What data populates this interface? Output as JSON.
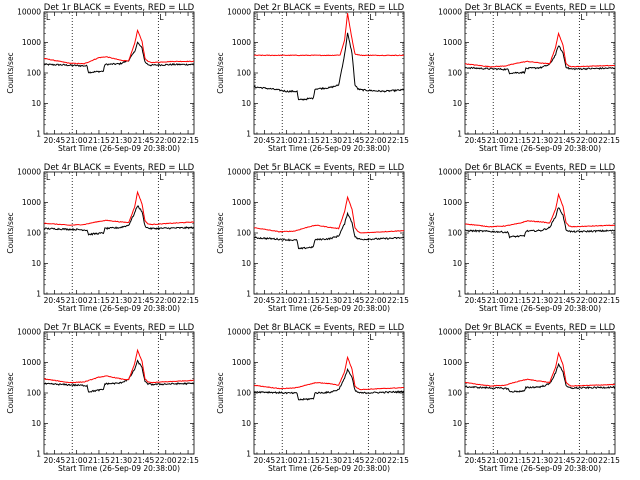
{
  "colors": {
    "events": "#000000",
    "lld": "#ff0000",
    "frame": "#000000",
    "vline": "#000000"
  },
  "chart_data": [
    {
      "type": "line",
      "title": "Det 1r BLACK = Events, RED = LLD",
      "xlabel": "Start Time (26-Sep-09 20:38:00)",
      "ylabel": "Counts/sec",
      "yscale": "log",
      "ylim": [
        1,
        10000
      ],
      "xlim": [
        "20:38",
        "22:19"
      ],
      "xticks": [
        "20:45",
        "21:00",
        "21:15",
        "21:30",
        "21:45",
        "22:00",
        "22:15"
      ],
      "yticks": [
        "1",
        "10",
        "100",
        "1000",
        "10000"
      ],
      "vlines": [
        "20:57",
        "21:55"
      ],
      "legend_mark": "L",
      "series": [
        {
          "name": "Events",
          "color": "#000000",
          "x": [
            "20:38",
            "20:50",
            "21:00",
            "21:07",
            "21:08",
            "21:18",
            "21:19",
            "21:29",
            "21:35",
            "21:39",
            "21:41",
            "21:44",
            "21:46",
            "21:48",
            "21:50",
            "22:05",
            "22:19"
          ],
          "y": [
            190,
            185,
            175,
            170,
            105,
            115,
            190,
            200,
            260,
            500,
            1000,
            650,
            230,
            190,
            180,
            190,
            190
          ]
        },
        {
          "name": "LLD",
          "color": "#ff0000",
          "x": [
            "20:38",
            "20:55",
            "21:05",
            "21:15",
            "21:20",
            "21:30",
            "21:35",
            "21:39",
            "21:41",
            "21:44",
            "21:46",
            "21:48",
            "21:50",
            "22:05",
            "22:19"
          ],
          "y": [
            300,
            210,
            200,
            320,
            340,
            260,
            250,
            900,
            2500,
            1100,
            300,
            240,
            220,
            240,
            240
          ]
        }
      ]
    },
    {
      "type": "line",
      "title": "Det 2r BLACK = Events, RED = LLD",
      "xlabel": "Start Time (26-Sep-09 20:38:00)",
      "ylabel": "Counts/sec",
      "yscale": "log",
      "ylim": [
        1,
        10000
      ],
      "xlim": [
        "20:38",
        "22:19"
      ],
      "xticks": [
        "20:45",
        "21:00",
        "21:15",
        "21:30",
        "21:45",
        "22:00",
        "22:15"
      ],
      "yticks": [
        "1",
        "10",
        "100",
        "1000",
        "10000"
      ],
      "vlines": [
        "20:57",
        "21:55"
      ],
      "legend_mark": "L",
      "series": [
        {
          "name": "Events",
          "color": "#000000",
          "x": [
            "20:38",
            "20:50",
            "21:00",
            "21:07",
            "21:08",
            "21:18",
            "21:19",
            "21:29",
            "21:35",
            "21:39",
            "21:41",
            "21:44",
            "21:46",
            "21:48",
            "21:50",
            "22:05",
            "22:19"
          ],
          "y": [
            35,
            30,
            25,
            25,
            13,
            15,
            30,
            33,
            40,
            400,
            2000,
            450,
            40,
            30,
            28,
            25,
            28
          ]
        },
        {
          "name": "LLD",
          "color": "#ff0000",
          "x": [
            "20:38",
            "21:00",
            "21:30",
            "21:36",
            "21:39",
            "21:41",
            "21:44",
            "21:46",
            "21:50",
            "22:05",
            "22:19"
          ],
          "y": [
            380,
            380,
            380,
            390,
            1200,
            9000,
            1300,
            420,
            380,
            380,
            380
          ]
        }
      ]
    },
    {
      "type": "line",
      "title": "Det 3r BLACK = Events, RED = LLD",
      "xlabel": "Start Time (26-Sep-09 20:38:00)",
      "ylabel": "Counts/sec",
      "yscale": "log",
      "ylim": [
        1,
        10000
      ],
      "xlim": [
        "20:38",
        "22:19"
      ],
      "xticks": [
        "20:45",
        "21:00",
        "21:15",
        "21:30",
        "21:45",
        "22:00",
        "22:15"
      ],
      "yticks": [
        "1",
        "10",
        "100",
        "1000",
        "10000"
      ],
      "vlines": [
        "20:57",
        "21:55"
      ],
      "legend_mark": "L",
      "series": [
        {
          "name": "Events",
          "color": "#000000",
          "x": [
            "20:38",
            "20:50",
            "21:00",
            "21:07",
            "21:08",
            "21:18",
            "21:19",
            "21:29",
            "21:35",
            "21:39",
            "21:41",
            "21:44",
            "21:46",
            "21:48",
            "21:50",
            "22:05",
            "22:19"
          ],
          "y": [
            150,
            140,
            135,
            130,
            100,
            105,
            140,
            150,
            190,
            400,
            800,
            450,
            160,
            140,
            135,
            140,
            145
          ]
        },
        {
          "name": "LLD",
          "color": "#ff0000",
          "x": [
            "20:38",
            "20:55",
            "21:05",
            "21:15",
            "21:20",
            "21:30",
            "21:35",
            "21:39",
            "21:41",
            "21:44",
            "21:46",
            "21:48",
            "21:50",
            "22:05",
            "22:19"
          ],
          "y": [
            200,
            160,
            170,
            220,
            240,
            210,
            200,
            700,
            2000,
            800,
            210,
            170,
            160,
            170,
            175
          ]
        }
      ]
    },
    {
      "type": "line",
      "title": "Det 4r BLACK = Events, RED = LLD",
      "xlabel": "Start Time (26-Sep-09 20:38:00)",
      "ylabel": "Counts/sec",
      "yscale": "log",
      "ylim": [
        1,
        10000
      ],
      "xlim": [
        "20:38",
        "22:19"
      ],
      "xticks": [
        "20:45",
        "21:00",
        "21:15",
        "21:30",
        "21:45",
        "22:00",
        "22:15"
      ],
      "yticks": [
        "1",
        "10",
        "100",
        "1000",
        "10000"
      ],
      "vlines": [
        "20:57",
        "21:55"
      ],
      "legend_mark": "L",
      "series": [
        {
          "name": "Events",
          "color": "#000000",
          "x": [
            "20:38",
            "20:50",
            "21:00",
            "21:07",
            "21:08",
            "21:18",
            "21:19",
            "21:29",
            "21:35",
            "21:39",
            "21:41",
            "21:44",
            "21:46",
            "21:48",
            "21:50",
            "22:05",
            "22:19"
          ],
          "y": [
            140,
            135,
            130,
            125,
            90,
            100,
            140,
            150,
            180,
            450,
            800,
            500,
            170,
            145,
            140,
            145,
            150
          ]
        },
        {
          "name": "LLD",
          "color": "#ff0000",
          "x": [
            "20:38",
            "20:55",
            "21:05",
            "21:15",
            "21:20",
            "21:30",
            "21:35",
            "21:39",
            "21:41",
            "21:44",
            "21:46",
            "21:48",
            "21:50",
            "22:05",
            "22:19"
          ],
          "y": [
            210,
            180,
            190,
            240,
            260,
            230,
            220,
            700,
            2200,
            900,
            250,
            200,
            190,
            210,
            230
          ]
        }
      ]
    },
    {
      "type": "line",
      "title": "Det 5r BLACK = Events, RED = LLD",
      "xlabel": "Start Time (26-Sep-09 20:38:00)",
      "ylabel": "Counts/sec",
      "yscale": "log",
      "ylim": [
        1,
        10000
      ],
      "xlim": [
        "20:38",
        "22:19"
      ],
      "xticks": [
        "20:45",
        "21:00",
        "21:15",
        "21:30",
        "21:45",
        "22:00",
        "22:15"
      ],
      "yticks": [
        "1",
        "10",
        "100",
        "1000",
        "10000"
      ],
      "vlines": [
        "20:57",
        "21:55"
      ],
      "legend_mark": "L",
      "series": [
        {
          "name": "Events",
          "color": "#000000",
          "x": [
            "20:38",
            "20:50",
            "21:00",
            "21:07",
            "21:08",
            "21:18",
            "21:19",
            "21:29",
            "21:35",
            "21:39",
            "21:41",
            "21:44",
            "21:46",
            "21:48",
            "21:50",
            "22:05",
            "22:19"
          ],
          "y": [
            70,
            65,
            60,
            58,
            30,
            35,
            60,
            65,
            80,
            200,
            450,
            220,
            75,
            65,
            62,
            65,
            70
          ]
        },
        {
          "name": "LLD",
          "color": "#ff0000",
          "x": [
            "20:38",
            "20:55",
            "21:05",
            "21:15",
            "21:20",
            "21:30",
            "21:35",
            "21:39",
            "21:41",
            "21:44",
            "21:46",
            "21:48",
            "21:50",
            "22:05",
            "22:19"
          ],
          "y": [
            150,
            110,
            115,
            160,
            180,
            150,
            140,
            500,
            1500,
            600,
            150,
            110,
            100,
            110,
            120
          ]
        }
      ]
    },
    {
      "type": "line",
      "title": "Det 6r BLACK = Events, RED = LLD",
      "xlabel": "Start Time (26-Sep-09 20:38:00)",
      "ylabel": "Counts/sec",
      "yscale": "log",
      "ylim": [
        1,
        10000
      ],
      "xlim": [
        "20:38",
        "22:19"
      ],
      "xticks": [
        "20:45",
        "21:00",
        "21:15",
        "21:30",
        "21:45",
        "22:00",
        "22:15"
      ],
      "yticks": [
        "1",
        "10",
        "100",
        "1000",
        "10000"
      ],
      "vlines": [
        "20:57",
        "21:55"
      ],
      "legend_mark": "L",
      "series": [
        {
          "name": "Events",
          "color": "#000000",
          "x": [
            "20:38",
            "20:50",
            "21:00",
            "21:07",
            "21:08",
            "21:18",
            "21:19",
            "21:29",
            "21:35",
            "21:39",
            "21:41",
            "21:44",
            "21:46",
            "21:48",
            "21:50",
            "22:05",
            "22:19"
          ],
          "y": [
            120,
            115,
            110,
            105,
            75,
            80,
            115,
            120,
            150,
            350,
            700,
            380,
            130,
            115,
            110,
            115,
            120
          ]
        },
        {
          "name": "LLD",
          "color": "#ff0000",
          "x": [
            "20:38",
            "20:55",
            "21:05",
            "21:15",
            "21:20",
            "21:30",
            "21:35",
            "21:39",
            "21:41",
            "21:44",
            "21:46",
            "21:48",
            "21:50",
            "22:05",
            "22:19"
          ],
          "y": [
            200,
            160,
            170,
            210,
            250,
            230,
            210,
            600,
            1800,
            750,
            220,
            170,
            160,
            170,
            180
          ]
        }
      ]
    },
    {
      "type": "line",
      "title": "Det 7r BLACK = Events, RED = LLD",
      "xlabel": "Start Time (26-Sep-09 20:38:00)",
      "ylabel": "Counts/sec",
      "yscale": "log",
      "ylim": [
        1,
        10000
      ],
      "xlim": [
        "20:38",
        "22:19"
      ],
      "xticks": [
        "20:45",
        "21:00",
        "21:15",
        "21:30",
        "21:45",
        "22:00",
        "22:15"
      ],
      "yticks": [
        "1",
        "10",
        "100",
        "1000",
        "10000"
      ],
      "vlines": [
        "20:57",
        "21:55"
      ],
      "legend_mark": "L",
      "series": [
        {
          "name": "Events",
          "color": "#000000",
          "x": [
            "20:38",
            "20:50",
            "21:00",
            "21:07",
            "21:08",
            "21:18",
            "21:19",
            "21:29",
            "21:35",
            "21:39",
            "21:41",
            "21:44",
            "21:46",
            "21:48",
            "21:50",
            "22:05",
            "22:19"
          ],
          "y": [
            200,
            190,
            180,
            175,
            110,
            130,
            200,
            210,
            280,
            600,
            1100,
            700,
            230,
            200,
            190,
            200,
            205
          ]
        },
        {
          "name": "LLD",
          "color": "#ff0000",
          "x": [
            "20:38",
            "20:55",
            "21:05",
            "21:15",
            "21:20",
            "21:30",
            "21:35",
            "21:39",
            "21:41",
            "21:44",
            "21:46",
            "21:48",
            "21:50",
            "22:05",
            "22:19"
          ],
          "y": [
            290,
            220,
            230,
            330,
            360,
            290,
            270,
            900,
            2500,
            1100,
            290,
            230,
            220,
            240,
            260
          ]
        }
      ]
    },
    {
      "type": "line",
      "title": "Det 8r BLACK = Events, RED = LLD",
      "xlabel": "Start Time (26-Sep-09 20:38:00)",
      "ylabel": "Counts/sec",
      "yscale": "log",
      "ylim": [
        1,
        10000
      ],
      "xlim": [
        "20:38",
        "22:19"
      ],
      "xticks": [
        "20:45",
        "21:00",
        "21:15",
        "21:30",
        "21:45",
        "22:00",
        "22:15"
      ],
      "yticks": [
        "1",
        "10",
        "100",
        "1000",
        "10000"
      ],
      "vlines": [
        "20:57",
        "21:55"
      ],
      "legend_mark": "L",
      "series": [
        {
          "name": "Events",
          "color": "#000000",
          "x": [
            "20:38",
            "20:50",
            "21:00",
            "21:07",
            "21:08",
            "21:18",
            "21:19",
            "21:29",
            "21:35",
            "21:39",
            "21:41",
            "21:44",
            "21:46",
            "21:48",
            "21:50",
            "22:05",
            "22:19"
          ],
          "y": [
            110,
            105,
            100,
            98,
            60,
            65,
            100,
            105,
            130,
            300,
            600,
            320,
            120,
            105,
            100,
            105,
            110
          ]
        },
        {
          "name": "LLD",
          "color": "#ff0000",
          "x": [
            "20:38",
            "20:55",
            "21:05",
            "21:15",
            "21:20",
            "21:30",
            "21:35",
            "21:39",
            "21:41",
            "21:44",
            "21:46",
            "21:48",
            "21:50",
            "22:05",
            "22:19"
          ],
          "y": [
            180,
            140,
            145,
            190,
            220,
            200,
            180,
            500,
            1500,
            600,
            170,
            140,
            130,
            140,
            150
          ]
        }
      ]
    },
    {
      "type": "line",
      "title": "Det 9r BLACK = Events, RED = LLD",
      "xlabel": "Start Time (26-Sep-09 20:38:00)",
      "ylabel": "Counts/sec",
      "yscale": "log",
      "ylim": [
        1,
        10000
      ],
      "xlim": [
        "20:38",
        "22:19"
      ],
      "xticks": [
        "20:45",
        "21:00",
        "21:15",
        "21:30",
        "21:45",
        "22:00",
        "22:15"
      ],
      "yticks": [
        "1",
        "10",
        "100",
        "1000",
        "10000"
      ],
      "vlines": [
        "20:57",
        "21:55"
      ],
      "legend_mark": "L",
      "series": [
        {
          "name": "Events",
          "color": "#000000",
          "x": [
            "20:38",
            "20:50",
            "21:00",
            "21:07",
            "21:08",
            "21:18",
            "21:19",
            "21:29",
            "21:35",
            "21:39",
            "21:41",
            "21:44",
            "21:46",
            "21:48",
            "21:50",
            "22:05",
            "22:19"
          ],
          "y": [
            160,
            150,
            145,
            140,
            110,
            115,
            150,
            160,
            200,
            450,
            900,
            500,
            170,
            150,
            145,
            150,
            155
          ]
        },
        {
          "name": "LLD",
          "color": "#ff0000",
          "x": [
            "20:38",
            "20:55",
            "21:05",
            "21:15",
            "21:20",
            "21:30",
            "21:35",
            "21:39",
            "21:41",
            "21:44",
            "21:46",
            "21:48",
            "21:50",
            "22:05",
            "22:19"
          ],
          "y": [
            220,
            170,
            180,
            250,
            280,
            240,
            220,
            700,
            2000,
            850,
            230,
            180,
            170,
            180,
            190
          ]
        }
      ]
    }
  ]
}
